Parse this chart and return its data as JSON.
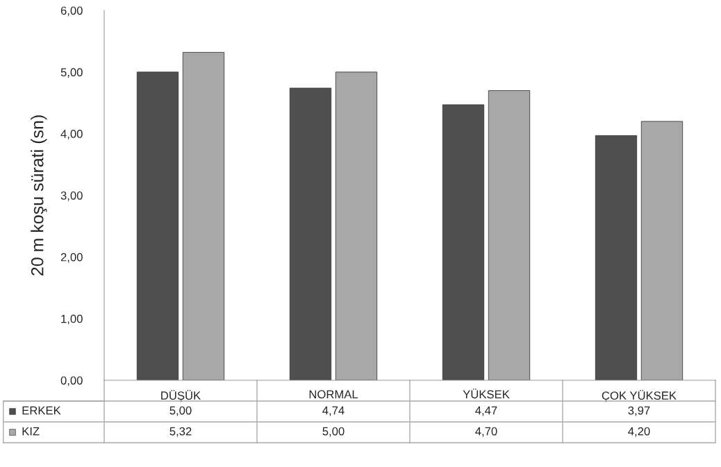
{
  "chart_data": {
    "type": "bar",
    "ylabel": "20 m koşu sürati (sn)",
    "categories": [
      "DÜŞÜK",
      "NORMAL",
      "YÜKSEK",
      "ÇOK YÜKSEK"
    ],
    "series": [
      {
        "name": "ERKEK",
        "color": "#4f4f4f",
        "values": [
          5.0,
          4.74,
          4.47,
          3.97
        ],
        "value_labels": [
          "5,00",
          "4,74",
          "4,47",
          "3,97"
        ]
      },
      {
        "name": "KIZ",
        "color": "#a8a8a8",
        "values": [
          5.32,
          5.0,
          4.7,
          4.2
        ],
        "value_labels": [
          "5,32",
          "5,00",
          "4,70",
          "4,20"
        ]
      }
    ],
    "legend": "bottom",
    "ylim": [
      0,
      6
    ],
    "yticks": [
      {
        "value": 0,
        "label": "0,00"
      },
      {
        "value": 1,
        "label": "1,00"
      },
      {
        "value": 2,
        "label": "2,00"
      },
      {
        "value": 3,
        "label": "3,00"
      },
      {
        "value": 4,
        "label": "4,00"
      },
      {
        "value": 5,
        "label": "5,00"
      },
      {
        "value": 6,
        "label": "6,00"
      }
    ]
  }
}
